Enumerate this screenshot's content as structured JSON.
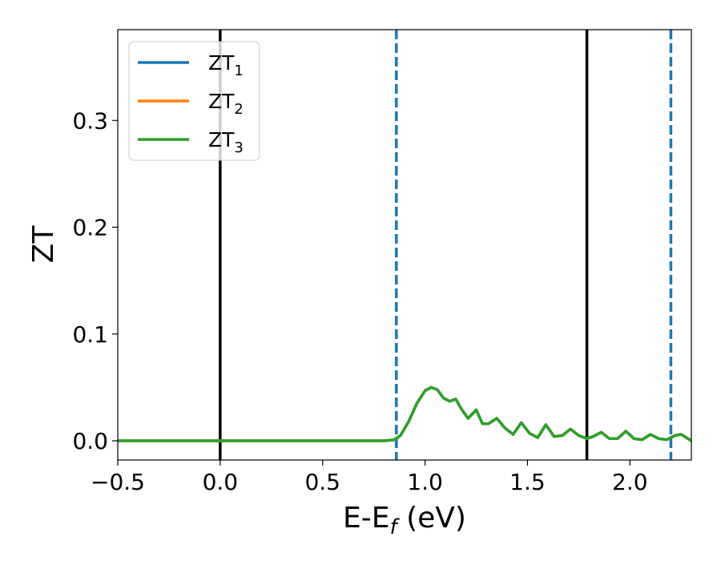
{
  "chart_data": {
    "type": "line",
    "title": "",
    "xlabel": "E-E",
    "xlabel_sub": "f",
    "xlabel_unit": " (eV)",
    "ylabel": "ZT",
    "xlim": [
      -0.5,
      2.3
    ],
    "ylim": [
      -0.018,
      0.385
    ],
    "xticks": [
      -0.5,
      0.0,
      0.5,
      1.0,
      1.5,
      2.0
    ],
    "xtick_labels": [
      "−0.5",
      "0.0",
      "0.5",
      "1.0",
      "1.5",
      "2.0"
    ],
    "yticks": [
      0.0,
      0.1,
      0.2,
      0.3
    ],
    "ytick_labels": [
      "0.0",
      "0.1",
      "0.2",
      "0.3"
    ],
    "grid": false,
    "legend_position": "top-left",
    "vertical_lines": [
      {
        "x": 0.0,
        "style": "solid",
        "color": "#000000"
      },
      {
        "x": 1.79,
        "style": "solid",
        "color": "#000000"
      },
      {
        "x": 0.86,
        "style": "dashed",
        "color": "#1f77b4"
      },
      {
        "x": 2.2,
        "style": "dashed",
        "color": "#1f77b4"
      }
    ],
    "series": [
      {
        "name": "ZT",
        "sub": "1",
        "color": "#1f77b4",
        "x": [
          -0.5,
          0.0,
          0.5,
          0.8,
          0.85,
          0.88,
          0.92,
          0.96,
          1.0,
          1.03,
          1.06,
          1.09,
          1.12,
          1.15,
          1.18,
          1.21,
          1.25,
          1.28,
          1.31,
          1.35,
          1.39,
          1.43,
          1.47,
          1.51,
          1.55,
          1.59,
          1.63,
          1.67,
          1.71,
          1.75,
          1.79,
          1.82,
          1.86,
          1.9,
          1.94,
          1.98,
          2.02,
          2.06,
          2.1,
          2.14,
          2.18,
          2.22,
          2.25,
          2.3
        ],
        "y": [
          0.0,
          0.0,
          0.0,
          0.0,
          0.001,
          0.005,
          0.018,
          0.035,
          0.047,
          0.05,
          0.048,
          0.04,
          0.037,
          0.039,
          0.029,
          0.021,
          0.029,
          0.016,
          0.016,
          0.021,
          0.012,
          0.006,
          0.017,
          0.007,
          0.003,
          0.015,
          0.004,
          0.005,
          0.011,
          0.005,
          0.002,
          0.004,
          0.008,
          0.002,
          0.002,
          0.009,
          0.002,
          0.001,
          0.006,
          0.002,
          0.001,
          0.005,
          0.006,
          0.0
        ]
      },
      {
        "name": "ZT",
        "sub": "2",
        "color": "#ff7f0e",
        "x": [
          -0.5,
          0.0,
          0.5,
          0.8,
          0.85,
          0.88,
          0.92,
          0.96,
          1.0,
          1.03,
          1.06,
          1.09,
          1.12,
          1.15,
          1.18,
          1.21,
          1.25,
          1.28,
          1.31,
          1.35,
          1.39,
          1.43,
          1.47,
          1.51,
          1.55,
          1.59,
          1.63,
          1.67,
          1.71,
          1.75,
          1.79,
          1.82,
          1.86,
          1.9,
          1.94,
          1.98,
          2.02,
          2.06,
          2.1,
          2.14,
          2.18,
          2.22,
          2.25,
          2.3
        ],
        "y": [
          0.0,
          0.0,
          0.0,
          0.0,
          0.001,
          0.005,
          0.018,
          0.035,
          0.047,
          0.05,
          0.048,
          0.04,
          0.037,
          0.039,
          0.029,
          0.021,
          0.029,
          0.016,
          0.016,
          0.021,
          0.012,
          0.006,
          0.017,
          0.007,
          0.003,
          0.015,
          0.004,
          0.005,
          0.011,
          0.005,
          0.002,
          0.004,
          0.008,
          0.002,
          0.002,
          0.009,
          0.002,
          0.001,
          0.006,
          0.002,
          0.001,
          0.005,
          0.006,
          0.0
        ]
      },
      {
        "name": "ZT",
        "sub": "3",
        "color": "#2ca02c",
        "x": [
          -0.5,
          0.0,
          0.5,
          0.8,
          0.85,
          0.88,
          0.92,
          0.96,
          1.0,
          1.03,
          1.06,
          1.09,
          1.12,
          1.15,
          1.18,
          1.21,
          1.25,
          1.28,
          1.31,
          1.35,
          1.39,
          1.43,
          1.47,
          1.51,
          1.55,
          1.59,
          1.63,
          1.67,
          1.71,
          1.75,
          1.79,
          1.82,
          1.86,
          1.9,
          1.94,
          1.98,
          2.02,
          2.06,
          2.1,
          2.14,
          2.18,
          2.22,
          2.25,
          2.3
        ],
        "y": [
          0.0,
          0.0,
          0.0,
          0.0,
          0.001,
          0.005,
          0.018,
          0.035,
          0.047,
          0.05,
          0.048,
          0.04,
          0.037,
          0.039,
          0.029,
          0.021,
          0.029,
          0.016,
          0.016,
          0.021,
          0.012,
          0.006,
          0.017,
          0.007,
          0.003,
          0.015,
          0.004,
          0.005,
          0.011,
          0.005,
          0.002,
          0.004,
          0.008,
          0.002,
          0.002,
          0.009,
          0.002,
          0.001,
          0.006,
          0.002,
          0.001,
          0.005,
          0.006,
          0.0
        ]
      }
    ]
  }
}
